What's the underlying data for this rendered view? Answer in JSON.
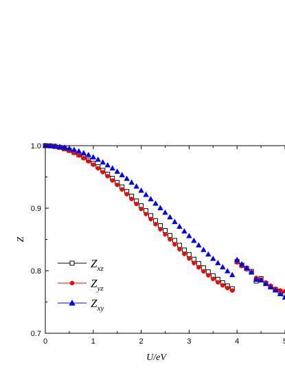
{
  "chart_data": {
    "type": "scatter",
    "xlabel": "U/eV",
    "ylabel": "Z",
    "xlim": [
      0,
      5
    ],
    "ylim": [
      0.7,
      1.0
    ],
    "xticks": [
      0,
      1,
      2,
      3,
      4,
      5
    ],
    "xtick_labels": [
      "0",
      "1",
      "2",
      "3",
      "4",
      "5"
    ],
    "yticks": [
      0.7,
      0.8,
      0.9,
      1.0
    ],
    "ytick_labels": [
      "0.7",
      "0.8",
      "0.9",
      "1.0"
    ],
    "grid": false,
    "legend_position": "bottom-left",
    "x": [
      0.0,
      0.1,
      0.2,
      0.3,
      0.4,
      0.5,
      0.6,
      0.7,
      0.8,
      0.9,
      1.0,
      1.1,
      1.2,
      1.3,
      1.4,
      1.5,
      1.6,
      1.7,
      1.8,
      1.9,
      2.0,
      2.1,
      2.2,
      2.3,
      2.4,
      2.5,
      2.6,
      2.7,
      2.8,
      2.9,
      3.0,
      3.1,
      3.2,
      3.3,
      3.4,
      3.5,
      3.6,
      3.7,
      3.8,
      3.9,
      4.0,
      4.1,
      4.2,
      4.3,
      4.4,
      4.5,
      4.6,
      4.7,
      4.8,
      4.9,
      5.0
    ],
    "series": [
      {
        "name": "Z_xz",
        "name_main": "Z",
        "name_sub": "xz",
        "color": "#000000",
        "marker": "open-square",
        "values": [
          1.0,
          0.9997,
          0.9988,
          0.9973,
          0.9952,
          0.9925,
          0.9894,
          0.9857,
          0.9815,
          0.9769,
          0.9718,
          0.9663,
          0.9605,
          0.9543,
          0.9478,
          0.941,
          0.934,
          0.9267,
          0.9193,
          0.9116,
          0.9039,
          0.896,
          0.8881,
          0.8801,
          0.8721,
          0.8642,
          0.8563,
          0.8484,
          0.8407,
          0.8331,
          0.8257,
          0.8184,
          0.8114,
          0.8047,
          0.7982,
          0.792,
          0.7862,
          0.7808,
          0.7758,
          0.7713,
          0.8145,
          0.8088,
          0.8036,
          0.7989,
          0.7835,
          0.7875,
          0.7795,
          0.7741,
          0.7698,
          0.7669,
          0.7625
        ]
      },
      {
        "name": "Z_yz",
        "name_main": "Z",
        "name_sub": "yz",
        "color": "#ff0000",
        "marker": "filled-circle",
        "values": [
          1.0,
          0.9996,
          0.9986,
          0.9969,
          0.9946,
          0.9917,
          0.9883,
          0.9843,
          0.9799,
          0.975,
          0.9696,
          0.9638,
          0.9577,
          0.9512,
          0.9444,
          0.9373,
          0.9299,
          0.9224,
          0.9147,
          0.9068,
          0.8988,
          0.8907,
          0.8825,
          0.8744,
          0.8663,
          0.8581,
          0.8501,
          0.8422,
          0.8344,
          0.8269,
          0.8195,
          0.8123,
          0.8054,
          0.7989,
          0.7927,
          0.7869,
          0.7815,
          0.7766,
          0.7722,
          0.7684,
          0.8135,
          0.8075,
          0.8023,
          0.7975,
          0.7885,
          0.786,
          0.7812,
          0.776,
          0.7712,
          0.7685,
          0.7672
        ]
      },
      {
        "name": "Z_xy",
        "name_main": "Z",
        "name_sub": "xy",
        "color": "#0000ff",
        "marker": "filled-triangle",
        "values": [
          1.0,
          0.9998,
          0.9993,
          0.9984,
          0.9972,
          0.9956,
          0.9936,
          0.9912,
          0.9884,
          0.9853,
          0.9817,
          0.9778,
          0.9735,
          0.9689,
          0.9639,
          0.9587,
          0.9531,
          0.9473,
          0.9412,
          0.9349,
          0.9283,
          0.9216,
          0.9147,
          0.9076,
          0.9004,
          0.8931,
          0.8857,
          0.8782,
          0.8707,
          0.8632,
          0.8557,
          0.8482,
          0.8408,
          0.8335,
          0.8263,
          0.8193,
          0.8125,
          0.8059,
          0.7995,
          0.7934,
          0.8175,
          0.8105,
          0.8045,
          0.7975,
          0.786,
          0.7848,
          0.7792,
          0.7738,
          0.7688,
          0.763,
          0.7575
        ]
      }
    ]
  }
}
